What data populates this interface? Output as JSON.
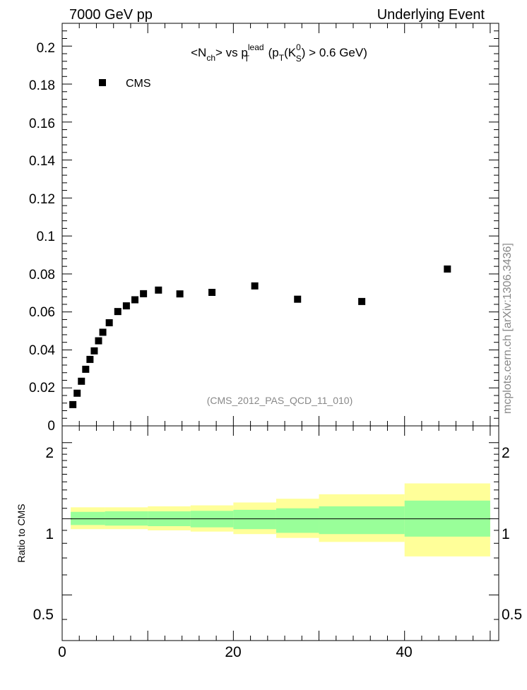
{
  "header": {
    "left": "7000 GeV pp",
    "right": "Underlying Event",
    "side_label": "mcplots.cern.ch [arXiv:1306.3436]"
  },
  "chart_data": [
    {
      "type": "scatter",
      "title": "<N_ch> vs p_T^lead (p_T(K_S^0) > 0.6 GeV)",
      "title_parts": {
        "a": "<N",
        "a_sub": "ch",
        "b": "> vs p",
        "b_sup": "lead",
        "b_sub": "T",
        "c": " (p",
        "c_sub": "T",
        "d": "(K",
        "d_sup": "0",
        "d_sub": "S",
        "e": ") > 0.6 GeV)"
      },
      "watermark": "(CMS_2012_PAS_QCD_11_010)",
      "xlim": [
        0,
        51
      ],
      "ylim": [
        0,
        0.212
      ],
      "y_ticks": [
        "0.2",
        "0.18",
        "0.16",
        "0.14",
        "0.12",
        "0.1",
        "0.08",
        "0.06",
        "0.04",
        "0.02",
        "0"
      ],
      "legend": {
        "position": "top-left",
        "label": "CMS"
      },
      "series": [
        {
          "name": "CMS",
          "marker": "square",
          "color": "#000000",
          "x": [
            1.25,
            1.75,
            2.25,
            2.75,
            3.25,
            3.75,
            4.25,
            4.75,
            5.5,
            6.5,
            7.5,
            8.5,
            9.5,
            11.25,
            13.75,
            17.5,
            22.5,
            27.5,
            35,
            45
          ],
          "y": [
            0.0112,
            0.0172,
            0.0235,
            0.0298,
            0.035,
            0.0395,
            0.0448,
            0.0493,
            0.0543,
            0.0602,
            0.0632,
            0.0664,
            0.0696,
            0.0715,
            0.0695,
            0.0703,
            0.0737,
            0.0667,
            0.0655,
            0.0826
          ]
        }
      ]
    },
    {
      "type": "area",
      "ylabel": "Ratio to CMS",
      "xlim": [
        0,
        51
      ],
      "ylim": [
        0.33,
        2.33
      ],
      "x_ticks": [
        "0",
        "20",
        "40"
      ],
      "y_ticks": [
        "2",
        "1",
        "0.5"
      ],
      "bands": {
        "bin_edges": [
          1,
          5,
          10,
          15,
          20,
          25,
          30,
          40,
          50
        ],
        "yellow_color": "#ffff99",
        "green_color": "#99ff99",
        "yellow_low": [
          0.91,
          0.91,
          0.9,
          0.89,
          0.87,
          0.84,
          0.81,
          0.71
        ],
        "yellow_high": [
          1.11,
          1.11,
          1.12,
          1.13,
          1.16,
          1.2,
          1.25,
          1.38
        ],
        "green_low": [
          0.945,
          0.94,
          0.935,
          0.925,
          0.91,
          0.88,
          0.87,
          0.85
        ],
        "green_high": [
          1.065,
          1.07,
          1.07,
          1.075,
          1.085,
          1.1,
          1.12,
          1.18
        ]
      },
      "reference_line": 1
    }
  ]
}
